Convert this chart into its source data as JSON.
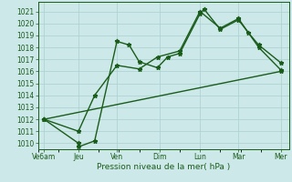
{
  "xlabel": "Pression niveau de la mer( hPa )",
  "bg_color": "#cce8e8",
  "grid_color": "#aacfcf",
  "line_color": "#1a5c1a",
  "ylim": [
    1009.5,
    1021.8
  ],
  "xlim": [
    0,
    12.4
  ],
  "xtick_labels": [
    "Ve6am",
    "Jeu",
    "Ven",
    "Dim",
    "Lun",
    "Mar",
    "Mer"
  ],
  "xtick_positions": [
    0.3,
    2.0,
    3.9,
    6.0,
    8.0,
    9.9,
    12.0
  ],
  "ytick_values": [
    1010,
    1011,
    1012,
    1013,
    1014,
    1015,
    1016,
    1017,
    1018,
    1019,
    1020,
    1021
  ],
  "series1_x": [
    0.3,
    2.0,
    2.0,
    2.8,
    3.9,
    4.5,
    5.0,
    5.9,
    6.4,
    7.0,
    8.0,
    8.2,
    9.0,
    9.9,
    10.4,
    10.9,
    12.0
  ],
  "series1_y": [
    1012,
    1010.0,
    1009.7,
    1010.2,
    1018.5,
    1018.2,
    1016.8,
    1016.3,
    1017.2,
    1017.5,
    1020.8,
    1021.2,
    1019.5,
    1020.3,
    1019.2,
    1018.2,
    1016.7
  ],
  "series2_x": [
    0.3,
    2.0,
    2.8,
    3.9,
    5.0,
    5.9,
    7.0,
    8.0,
    9.0,
    9.9,
    10.9,
    12.0
  ],
  "series2_y": [
    1012,
    1011.0,
    1014.0,
    1016.5,
    1016.2,
    1017.2,
    1017.7,
    1021.0,
    1019.6,
    1020.4,
    1018.0,
    1016.1
  ],
  "series3_x": [
    0.3,
    12.0
  ],
  "series3_y": [
    1012,
    1016.0
  ],
  "marker_size": 3.5,
  "marker_style": "*",
  "line_width": 1.0
}
